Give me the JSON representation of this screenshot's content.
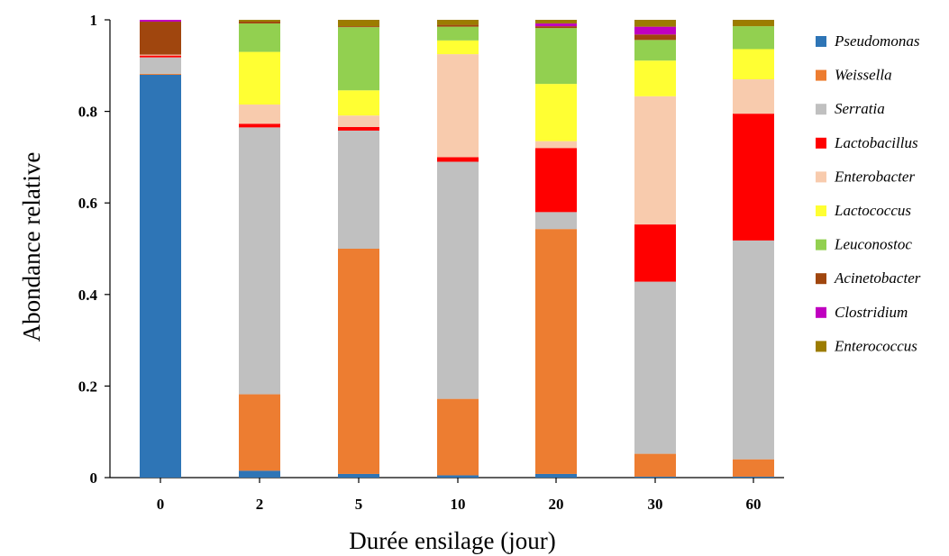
{
  "chart_data": {
    "type": "bar",
    "stacked": true,
    "categories": [
      "0",
      "2",
      "5",
      "10",
      "20",
      "30",
      "60"
    ],
    "xlabel": "Durée ensilage (jour)",
    "ylabel": "Abondance relative",
    "ylim": [
      0,
      1
    ],
    "yticks": [
      0,
      0.2,
      0.4,
      0.6,
      0.8,
      1
    ],
    "ytick_labels": [
      "0",
      "0.2",
      "0.4",
      "0.6",
      "0.8",
      "1"
    ],
    "grid": false,
    "legend_position": "right",
    "series": [
      {
        "name": "Pseudomonas",
        "color": "#2e75b6",
        "values": [
          0.88,
          0.015,
          0.008,
          0.005,
          0.008,
          0.002,
          0.002
        ]
      },
      {
        "name": "Weissella",
        "color": "#ed7d31",
        "values": [
          0.002,
          0.167,
          0.492,
          0.167,
          0.535,
          0.05,
          0.038
        ]
      },
      {
        "name": "Serratia",
        "color": "#c0c0c0",
        "values": [
          0.036,
          0.583,
          0.258,
          0.518,
          0.037,
          0.376,
          0.478
        ]
      },
      {
        "name": "Lactobacillus",
        "color": "#ff0000",
        "values": [
          0.004,
          0.008,
          0.008,
          0.01,
          0.14,
          0.125,
          0.277
        ]
      },
      {
        "name": "Enterobacter",
        "color": "#f8cbad",
        "values": [
          0.002,
          0.042,
          0.025,
          0.225,
          0.015,
          0.28,
          0.075
        ]
      },
      {
        "name": "Lactococcus",
        "color": "#ffff33",
        "values": [
          0.0,
          0.115,
          0.055,
          0.03,
          0.125,
          0.078,
          0.066
        ]
      },
      {
        "name": "Leuconostoc",
        "color": "#92d050",
        "values": [
          0.0,
          0.062,
          0.138,
          0.03,
          0.122,
          0.045,
          0.05
        ]
      },
      {
        "name": "Acinetobacter",
        "color": "#a0460e",
        "values": [
          0.072,
          0.004,
          0.002,
          0.004,
          0.004,
          0.012,
          0.0
        ]
      },
      {
        "name": "Clostridium",
        "color": "#c000c0",
        "values": [
          0.004,
          0.0,
          0.0,
          0.0,
          0.006,
          0.017,
          0.0
        ]
      },
      {
        "name": "Enterococcus",
        "color": "#9c7c00",
        "values": [
          0.0,
          0.004,
          0.014,
          0.011,
          0.008,
          0.015,
          0.014
        ]
      }
    ]
  }
}
